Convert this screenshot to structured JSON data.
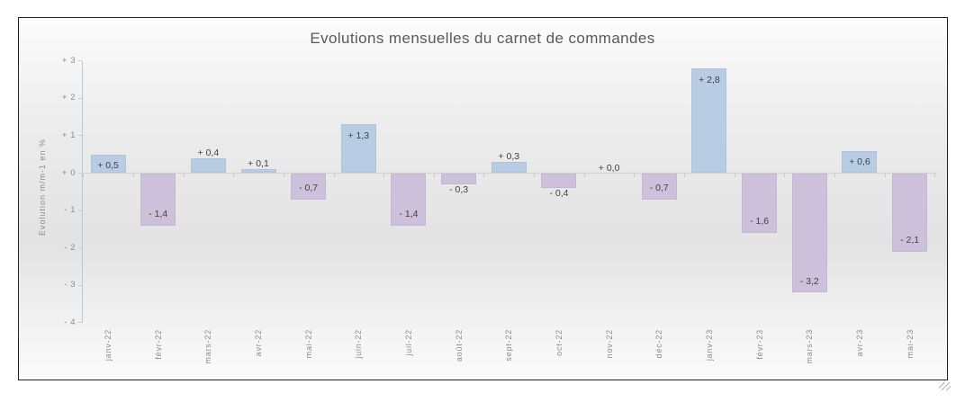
{
  "chart_data": {
    "type": "bar",
    "title": "Evolutions mensuelles du carnet de commandes",
    "xlabel": "",
    "ylabel": "Evolution m/m-1 en %",
    "categories": [
      "janv-22",
      "févr-22",
      "mars-22",
      "avr-22",
      "mai-22",
      "juin-22",
      "juil-22",
      "août-22",
      "sept-22",
      "oct-22",
      "nov-22",
      "déc-22",
      "janv-23",
      "févr-23",
      "mars-23",
      "avr-23",
      "mai-23"
    ],
    "values": [
      0.5,
      -1.4,
      0.4,
      0.1,
      -0.7,
      1.3,
      -1.4,
      -0.3,
      0.3,
      -0.4,
      0.0,
      -0.7,
      2.8,
      -1.6,
      -3.2,
      0.6,
      -2.1
    ],
    "value_labels": [
      "+ 0,5",
      "- 1,4",
      "+ 0,4",
      "+ 0,1",
      "- 0,7",
      "+ 1,3",
      "- 1,4",
      "- 0,3",
      "+ 0,3",
      "- 0,4",
      "+ 0,0",
      "- 0,7",
      "+ 2,8",
      "- 1,6",
      "- 3,2",
      "+ 0,6",
      "- 2,1"
    ],
    "yticks": {
      "labels": [
        "+ 3",
        "+ 2",
        "+ 1",
        "+ 0",
        "- 1",
        "- 2",
        "- 3",
        "- 4"
      ],
      "values": [
        3,
        2,
        1,
        0,
        -1,
        -2,
        -3,
        -4
      ]
    },
    "ylim": [
      -4,
      3
    ],
    "grid": false,
    "legend": false,
    "bar_colors": {
      "positive": "#b8cce4",
      "negative": "#ccc0da"
    },
    "label_color": "#404040",
    "axis_text_color": "#8c8c8c"
  }
}
